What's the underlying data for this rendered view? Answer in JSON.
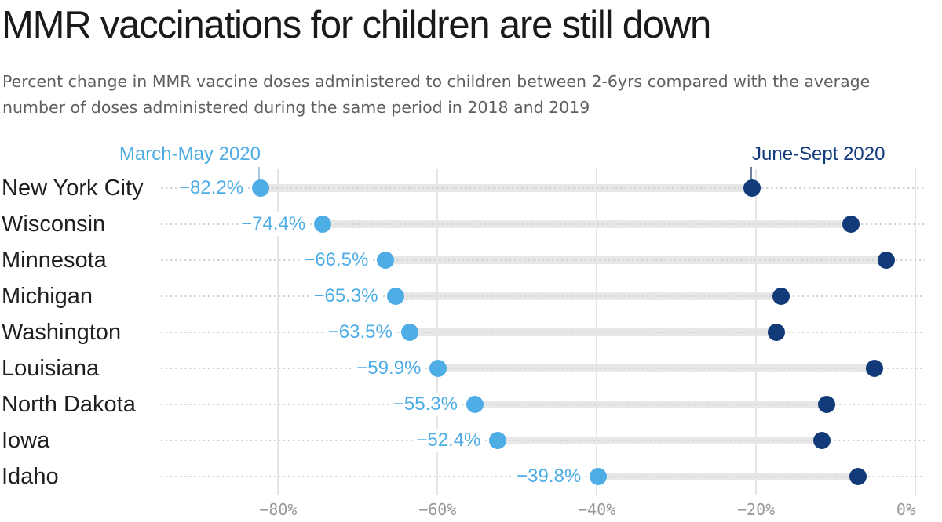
{
  "title": "MMR vaccinations for children are still down",
  "subtitle_lines": [
    "Percent change in MMR vaccine doses administered to children between 2-6yrs compared with the average",
    "number of doses administered during the same period in 2018 and 2019"
  ],
  "colors": {
    "march_may_blue": "#4FADE6",
    "june_sept_navy": "#123A78",
    "connector_bar": "#E7E7E7",
    "gridline": "#E5E5E5",
    "tick_text": "#999999",
    "title_text": "#1A1A1A",
    "subtitle_text": "#5F5F5F"
  },
  "chart_data": {
    "type": "scatter",
    "variant": "dumbbell",
    "title": "MMR vaccinations for children are still down",
    "xlabel": "",
    "ylabel": "",
    "categories": [
      "New York City",
      "Wisconsin",
      "Minnesota",
      "Michigan",
      "Washington",
      "Louisiana",
      "North Dakota",
      "Iowa",
      "Idaho"
    ],
    "series": [
      {
        "name": "March-May 2020",
        "color": "#4FADE6",
        "values": [
          -82.2,
          -74.4,
          -66.5,
          -65.3,
          -63.5,
          -59.9,
          -55.3,
          -52.4,
          -39.8
        ],
        "value_labels": [
          "−82.2%",
          "−74.4%",
          "−66.5%",
          "−65.3%",
          "−63.5%",
          "−59.9%",
          "−55.3%",
          "−52.4%",
          "−39.8%"
        ]
      },
      {
        "name": "June-Sept 2020",
        "color": "#123A78",
        "values": [
          -20.5,
          -8.1,
          -3.6,
          -16.9,
          -17.4,
          -5.1,
          -11.1,
          -11.7,
          -7.2
        ],
        "values_note": "estimated from dot positions; not labeled on chart"
      }
    ],
    "xlim": [
      -95,
      1
    ],
    "xticks": [
      {
        "label": "−80%",
        "value": -80
      },
      {
        "label": "−60%",
        "value": -60
      },
      {
        "label": "−40%",
        "value": -40
      },
      {
        "label": "−20%",
        "value": -20
      },
      {
        "label": "0%",
        "value": 0
      }
    ],
    "grid": "vertical",
    "legend_position": "top, labels pointing to first-row dots"
  }
}
